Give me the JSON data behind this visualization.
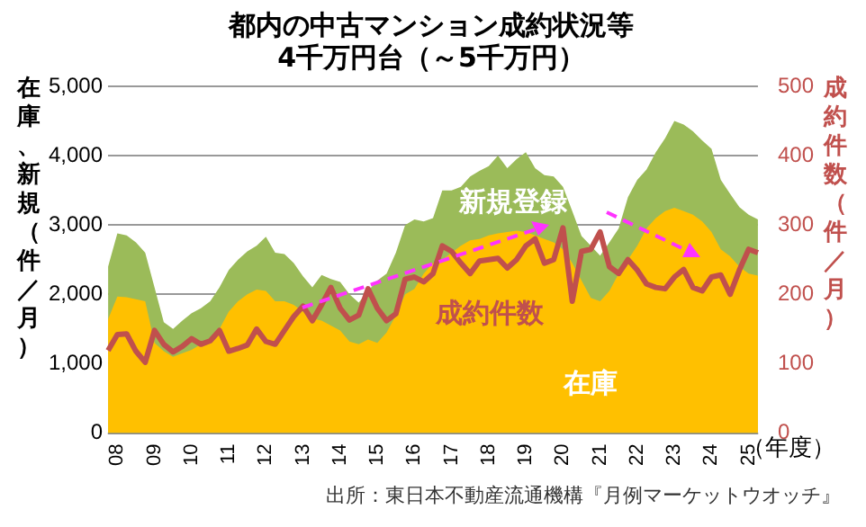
{
  "chart_data": {
    "type": "area",
    "title": "都内の中古マンション成約状況等",
    "subtitle": "4千万円台（～5千万円）",
    "xlabel": "（年度）",
    "ylabel": "在庫、新規（件／月）",
    "y2label": "成約件数（件／月）",
    "categories": [
      null,
      "08",
      null,
      null,
      null,
      "09",
      null,
      null,
      null,
      "10",
      null,
      null,
      null,
      "11",
      null,
      null,
      null,
      "12",
      null,
      null,
      null,
      "13",
      null,
      null,
      null,
      "14",
      null,
      null,
      null,
      "15",
      null,
      null,
      null,
      "16",
      null,
      null,
      null,
      "17",
      null,
      null,
      null,
      "18",
      null,
      null,
      null,
      "19",
      null,
      null,
      null,
      "20",
      null,
      null,
      null,
      "21",
      null,
      null,
      null,
      "22",
      null,
      null,
      null,
      "23",
      null,
      null,
      null,
      "24",
      null,
      null,
      null,
      "25",
      null
    ],
    "series": [
      {
        "name": "新規登録",
        "type": "area",
        "color": "#9bbb59",
        "values": [
          2400,
          2880,
          2850,
          2750,
          2600,
          2100,
          1600,
          1500,
          1620,
          1730,
          1800,
          1900,
          2100,
          2350,
          2500,
          2620,
          2700,
          2830,
          2600,
          2580,
          2450,
          2260,
          2100,
          2280,
          2220,
          2180,
          2000,
          1880,
          2050,
          2200,
          2300,
          2600,
          3000,
          3080,
          3050,
          3100,
          3500,
          3500,
          3550,
          3700,
          3780,
          3850,
          4000,
          3820,
          3950,
          4050,
          3820,
          3720,
          3700,
          3550,
          3200,
          2840,
          2700,
          2560,
          2750,
          2950,
          3400,
          3650,
          3800,
          4050,
          4250,
          4500,
          4450,
          4350,
          4220,
          4100,
          3650,
          3450,
          3260,
          3150,
          3080
        ]
      },
      {
        "name": "在庫",
        "type": "area",
        "color": "#ffc000",
        "values": [
          1640,
          1970,
          1960,
          1930,
          1900,
          1300,
          1180,
          1100,
          1150,
          1200,
          1280,
          1320,
          1500,
          1750,
          1900,
          2000,
          2070,
          2050,
          1900,
          1900,
          1850,
          1750,
          1650,
          1620,
          1550,
          1480,
          1320,
          1280,
          1350,
          1300,
          1450,
          1700,
          2000,
          2080,
          2300,
          2450,
          2500,
          2600,
          2700,
          2780,
          2800,
          2850,
          2880,
          2900,
          2920,
          2900,
          2850,
          2800,
          2750,
          2650,
          2450,
          2200,
          1950,
          1900,
          2050,
          2300,
          2500,
          2700,
          2950,
          3100,
          3200,
          3250,
          3200,
          3150,
          3050,
          2900,
          2650,
          2550,
          2400,
          2300,
          2270
        ]
      },
      {
        "name": "成約件数",
        "type": "line",
        "axis": "y2",
        "color": "#c0504d",
        "values": [
          119,
          142,
          143,
          118,
          102,
          148,
          128,
          117,
          125,
          136,
          128,
          133,
          148,
          118,
          122,
          127,
          150,
          132,
          128,
          148,
          168,
          183,
          162,
          185,
          210,
          180,
          163,
          170,
          208,
          180,
          162,
          172,
          222,
          225,
          218,
          230,
          270,
          262,
          245,
          230,
          248,
          250,
          252,
          238,
          250,
          270,
          280,
          245,
          250,
          296,
          190,
          262,
          265,
          290,
          240,
          230,
          250,
          235,
          215,
          210,
          208,
          225,
          236,
          210,
          205,
          225,
          228,
          200,
          235,
          265,
          260
        ]
      }
    ],
    "ylim": [
      0,
      5000
    ],
    "yticks": [
      {
        "value": 0,
        "label": "0"
      },
      {
        "value": 1000,
        "label": "1,000"
      },
      {
        "value": 2000,
        "label": "2,000"
      },
      {
        "value": 3000,
        "label": "3,000"
      },
      {
        "value": 4000,
        "label": "4,000"
      },
      {
        "value": 5000,
        "label": "5,000"
      }
    ],
    "y2lim": [
      0,
      500
    ],
    "y2ticks": [
      0,
      100,
      200,
      300,
      400,
      500
    ],
    "grid": "y",
    "legend": false,
    "annotations": [
      "出所：東日本不動産流通機構『月例マーケットウオッチ』"
    ]
  }
}
